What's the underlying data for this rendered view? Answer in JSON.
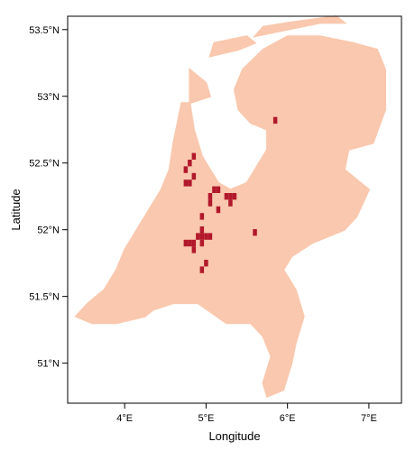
{
  "chart_data": {
    "type": "heatmap",
    "title": "",
    "xlabel": "Longitude",
    "ylabel": "Latitude",
    "xlim": [
      3.3,
      7.4
    ],
    "ylim": [
      50.7,
      53.6
    ],
    "x_ticks": [
      {
        "value": 4,
        "label": "4°E"
      },
      {
        "value": 5,
        "label": "5°E"
      },
      {
        "value": 6,
        "label": "6°E"
      },
      {
        "value": 7,
        "label": "7°E"
      }
    ],
    "y_ticks": [
      {
        "value": 51,
        "label": "51°N"
      },
      {
        "value": 51.5,
        "label": "51.5°N"
      },
      {
        "value": 52,
        "label": "52°N"
      },
      {
        "value": 52.5,
        "label": "52.5°N"
      },
      {
        "value": 53,
        "label": "53°N"
      },
      {
        "value": 53.5,
        "label": "53.5°N"
      }
    ],
    "grid": false,
    "legend": "none",
    "colors": {
      "base": "#F9C8AE",
      "highlight": "#B2182B"
    },
    "land_regions": [
      [
        [
          3.4,
          51.35
        ],
        [
          3.55,
          51.45
        ],
        [
          3.75,
          51.55
        ],
        [
          3.9,
          51.7
        ],
        [
          4.0,
          51.85
        ],
        [
          4.15,
          52.0
        ],
        [
          4.3,
          52.15
        ],
        [
          4.45,
          52.3
        ],
        [
          4.55,
          52.45
        ],
        [
          4.6,
          52.65
        ],
        [
          4.7,
          52.95
        ],
        [
          4.8,
          52.95
        ],
        [
          4.85,
          52.75
        ],
        [
          4.95,
          52.55
        ],
        [
          5.05,
          52.45
        ],
        [
          5.15,
          52.35
        ],
        [
          5.3,
          52.3
        ],
        [
          5.5,
          52.35
        ],
        [
          5.6,
          52.45
        ],
        [
          5.75,
          52.6
        ],
        [
          5.75,
          52.75
        ],
        [
          5.55,
          52.8
        ],
        [
          5.4,
          52.9
        ],
        [
          5.35,
          53.05
        ],
        [
          5.45,
          53.2
        ],
        [
          5.7,
          53.35
        ],
        [
          6.0,
          53.45
        ],
        [
          6.4,
          53.45
        ],
        [
          6.8,
          53.4
        ],
        [
          7.1,
          53.35
        ],
        [
          7.2,
          53.2
        ],
        [
          7.2,
          52.9
        ],
        [
          7.05,
          52.65
        ],
        [
          6.75,
          52.6
        ],
        [
          6.7,
          52.45
        ],
        [
          7.0,
          52.3
        ],
        [
          6.85,
          52.1
        ],
        [
          6.7,
          52.0
        ],
        [
          6.3,
          51.9
        ],
        [
          6.05,
          51.8
        ],
        [
          5.95,
          51.7
        ],
        [
          6.1,
          51.55
        ],
        [
          6.2,
          51.35
        ],
        [
          6.1,
          51.15
        ],
        [
          6.05,
          51.0
        ],
        [
          5.95,
          50.8
        ],
        [
          5.75,
          50.75
        ],
        [
          5.7,
          50.85
        ],
        [
          5.8,
          51.05
        ],
        [
          5.7,
          51.2
        ],
        [
          5.55,
          51.3
        ],
        [
          5.25,
          51.3
        ],
        [
          4.9,
          51.45
        ],
        [
          4.6,
          51.45
        ],
        [
          4.35,
          51.4
        ],
        [
          4.25,
          51.35
        ],
        [
          3.9,
          51.3
        ],
        [
          3.6,
          51.3
        ]
      ],
      [
        [
          4.8,
          53.2
        ],
        [
          5.0,
          53.1
        ],
        [
          5.05,
          53.0
        ],
        [
          4.8,
          52.95
        ]
      ],
      [
        [
          5.05,
          53.3
        ],
        [
          5.4,
          53.35
        ],
        [
          5.6,
          53.4
        ],
        [
          5.5,
          53.45
        ],
        [
          5.1,
          53.4
        ]
      ],
      [
        [
          5.6,
          53.45
        ],
        [
          6.0,
          53.5
        ],
        [
          6.4,
          53.55
        ],
        [
          6.7,
          53.55
        ],
        [
          6.6,
          53.6
        ],
        [
          6.0,
          53.55
        ],
        [
          5.7,
          53.52
        ]
      ]
    ],
    "highlight_cells": [
      [
        4.75,
        52.35
      ],
      [
        4.8,
        52.35
      ],
      [
        4.85,
        52.4
      ],
      [
        4.75,
        52.45
      ],
      [
        4.85,
        52.55
      ],
      [
        4.95,
        52.1
      ],
      [
        5.1,
        52.3
      ],
      [
        5.15,
        52.3
      ],
      [
        5.05,
        52.25
      ],
      [
        5.25,
        52.25
      ],
      [
        5.3,
        52.25
      ],
      [
        5.35,
        52.25
      ],
      [
        5.3,
        52.2
      ],
      [
        5.15,
        52.15
      ],
      [
        5.05,
        52.2
      ],
      [
        4.95,
        52.0
      ],
      [
        4.75,
        51.9
      ],
      [
        4.8,
        51.9
      ],
      [
        4.85,
        51.9
      ],
      [
        4.85,
        51.85
      ],
      [
        4.9,
        51.95
      ],
      [
        4.95,
        51.95
      ],
      [
        5.0,
        51.95
      ],
      [
        5.05,
        51.95
      ],
      [
        4.95,
        51.9
      ],
      [
        5.0,
        51.75
      ],
      [
        4.95,
        51.7
      ],
      [
        5.6,
        51.98
      ],
      [
        5.85,
        52.82
      ],
      [
        4.8,
        52.5
      ]
    ]
  }
}
